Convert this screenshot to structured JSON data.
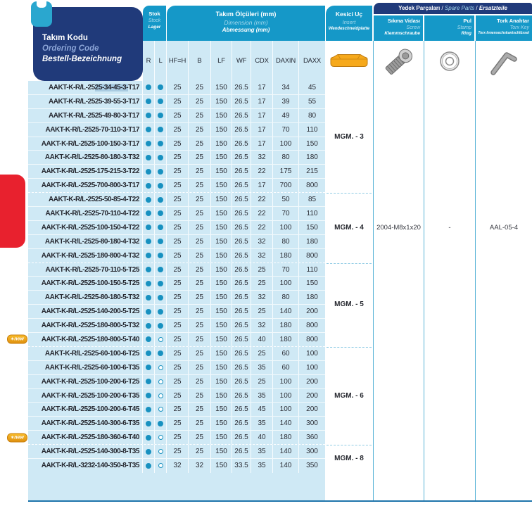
{
  "colors": {
    "navy": "#203a7a",
    "cyan": "#1598c8",
    "light_blue": "#cfe9f5",
    "dot": "#1791c0",
    "gold": "#f6a91c",
    "red": "#e8212e",
    "selection": "#a9cbe1",
    "column_border": "#58b3d6"
  },
  "ordering_code_header": {
    "tr": "Takım Kodu",
    "en": "Ordering Code",
    "de": "Bestell-Bezeichnung"
  },
  "stock_header": {
    "tr": "Stok",
    "en": "Stock",
    "de": "Lager"
  },
  "dimensions_header": {
    "tr": "Takım Ölçüleri (mm)",
    "en": "Dimension (mm)",
    "de": "Abmessung (mm)"
  },
  "insert_header": {
    "tr": "Kesici Uç",
    "en": "Insert",
    "de": "Wendeschneidplatte"
  },
  "spare_parts_header": {
    "tr": "Yedek Parçaları",
    "en": "Spare Parts",
    "de": "Ersatzteile",
    "separator": "/"
  },
  "screw_header": {
    "tr": "Sıkma Vidası",
    "en": "Screw",
    "de": "Klemmschraube"
  },
  "ring_header": {
    "tr": "Pul",
    "en": "Stamp",
    "de": "Ring"
  },
  "torx_header": {
    "tr": "Tork Anahtar",
    "en": "Torx Key",
    "de": "Torx Innensechskantschlüssel"
  },
  "dim_columns": [
    "R",
    "L",
    "HF=H",
    "B",
    "LF",
    "WF",
    "CDX",
    "DAXIN",
    "DAXX"
  ],
  "icons": {
    "insert": "grooving-insert-icon",
    "screw": "clamp-screw-icon",
    "ring": "washer-icon",
    "torx": "torx-key-icon"
  },
  "new_badge_label": "new",
  "groups": [
    {
      "insert_ref": "MGM. - 3",
      "screw": "",
      "ring": "",
      "torx": "",
      "rows": [
        {
          "code": "AAKT-K-R/L-2525-34-45-3-T17",
          "selection": "25-34-45-3-",
          "r": 1,
          "l": 1,
          "new": false,
          "dims": [
            "25",
            "25",
            "150",
            "26.5",
            "17",
            "34",
            "45"
          ]
        },
        {
          "code": "AAKT-K-R/L-2525-39-55-3-T17",
          "r": 1,
          "l": 1,
          "new": false,
          "dims": [
            "25",
            "25",
            "150",
            "26.5",
            "17",
            "39",
            "55"
          ]
        },
        {
          "code": "AAKT-K-R/L-2525-49-80-3-T17",
          "r": 1,
          "l": 1,
          "new": false,
          "dims": [
            "25",
            "25",
            "150",
            "26.5",
            "17",
            "49",
            "80"
          ]
        },
        {
          "code": "AAKT-K-R/L-2525-70-110-3-T17",
          "r": 1,
          "l": 1,
          "new": false,
          "dims": [
            "25",
            "25",
            "150",
            "26.5",
            "17",
            "70",
            "110"
          ]
        },
        {
          "code": "AAKT-K-R/L-2525-100-150-3-T17",
          "r": 1,
          "l": 1,
          "new": false,
          "dims": [
            "25",
            "25",
            "150",
            "26.5",
            "17",
            "100",
            "150"
          ]
        },
        {
          "code": "AAKT-K-R/L-2525-80-180-3-T32",
          "r": 1,
          "l": 1,
          "new": false,
          "dims": [
            "25",
            "25",
            "150",
            "26.5",
            "32",
            "80",
            "180"
          ]
        },
        {
          "code": "AAKT-K-R/L-2525-175-215-3-T22",
          "r": 1,
          "l": 1,
          "new": false,
          "dims": [
            "25",
            "25",
            "150",
            "26.5",
            "22",
            "175",
            "215"
          ]
        },
        {
          "code": "AAKT-K-R/L-2525-700-800-3-T17",
          "r": 1,
          "l": 1,
          "new": false,
          "dims": [
            "25",
            "25",
            "150",
            "26.5",
            "17",
            "700",
            "800"
          ]
        }
      ]
    },
    {
      "insert_ref": "MGM. - 4",
      "screw": "2004-M8x1x20",
      "ring": "-",
      "torx": "AAL-05-4",
      "rows": [
        {
          "code": "AAKT-K-R/L-2525-50-85-4-T22",
          "r": 1,
          "l": 1,
          "new": false,
          "dims": [
            "25",
            "25",
            "150",
            "26.5",
            "22",
            "50",
            "85"
          ]
        },
        {
          "code": "AAKT-K-R/L-2525-70-110-4-T22",
          "r": 1,
          "l": 1,
          "new": false,
          "dims": [
            "25",
            "25",
            "150",
            "26.5",
            "22",
            "70",
            "110"
          ]
        },
        {
          "code": "AAKT-K-R/L-2525-100-150-4-T22",
          "r": 1,
          "l": 1,
          "new": false,
          "dims": [
            "25",
            "25",
            "150",
            "26.5",
            "22",
            "100",
            "150"
          ]
        },
        {
          "code": "AAKT-K-R/L-2525-80-180-4-T32",
          "r": 1,
          "l": 1,
          "new": false,
          "dims": [
            "25",
            "25",
            "150",
            "26.5",
            "32",
            "80",
            "180"
          ]
        },
        {
          "code": "AAKT-K-R/L-2525-180-800-4-T32",
          "r": 1,
          "l": 1,
          "new": false,
          "dims": [
            "25",
            "25",
            "150",
            "26.5",
            "32",
            "180",
            "800"
          ]
        }
      ]
    },
    {
      "insert_ref": "MGM. - 5",
      "screw": "",
      "ring": "",
      "torx": "",
      "rows": [
        {
          "code": "AAKT-K-R/L-2525-70-110-5-T25",
          "r": 1,
          "l": 1,
          "new": false,
          "dims": [
            "25",
            "25",
            "150",
            "26.5",
            "25",
            "70",
            "110"
          ]
        },
        {
          "code": "AAKT-K-R/L-2525-100-150-5-T25",
          "r": 1,
          "l": 1,
          "new": false,
          "dims": [
            "25",
            "25",
            "150",
            "26.5",
            "25",
            "100",
            "150"
          ]
        },
        {
          "code": "AAKT-K-R/L-2525-80-180-5-T32",
          "r": 1,
          "l": 1,
          "new": false,
          "dims": [
            "25",
            "25",
            "150",
            "26.5",
            "32",
            "80",
            "180"
          ]
        },
        {
          "code": "AAKT-K-R/L-2525-140-200-5-T25",
          "r": 1,
          "l": 1,
          "new": false,
          "dims": [
            "25",
            "25",
            "150",
            "26.5",
            "25",
            "140",
            "200"
          ]
        },
        {
          "code": "AAKT-K-R/L-2525-180-800-5-T32",
          "r": 1,
          "l": 1,
          "new": false,
          "dims": [
            "25",
            "25",
            "150",
            "26.5",
            "32",
            "180",
            "800"
          ]
        },
        {
          "code": "AAKT-K-R/L-2525-180-800-5-T40",
          "r": 1,
          "l": 0,
          "new": true,
          "dims": [
            "25",
            "25",
            "150",
            "26.5",
            "40",
            "180",
            "800"
          ]
        }
      ]
    },
    {
      "insert_ref": "MGM. - 6",
      "screw": "",
      "ring": "",
      "torx": "",
      "rows": [
        {
          "code": "AAKT-K-R/L-2525-60-100-6-T25",
          "r": 1,
          "l": 1,
          "new": false,
          "dims": [
            "25",
            "25",
            "150",
            "26.5",
            "25",
            "60",
            "100"
          ]
        },
        {
          "code": "AAKT-K-R/L-2525-60-100-6-T35",
          "r": 1,
          "l": 0,
          "new": false,
          "dims": [
            "25",
            "25",
            "150",
            "26.5",
            "35",
            "60",
            "100"
          ]
        },
        {
          "code": "AAKT-K-R/L-2525-100-200-6-T25",
          "r": 1,
          "l": 0,
          "new": false,
          "dims": [
            "25",
            "25",
            "150",
            "26.5",
            "25",
            "100",
            "200"
          ]
        },
        {
          "code": "AAKT-K-R/L-2525-100-200-6-T35",
          "r": 1,
          "l": 0,
          "new": false,
          "dims": [
            "25",
            "25",
            "150",
            "26.5",
            "35",
            "100",
            "200"
          ]
        },
        {
          "code": "AAKT-K-R/L-2525-100-200-6-T45",
          "r": 1,
          "l": 0,
          "new": false,
          "dims": [
            "25",
            "25",
            "150",
            "26.5",
            "45",
            "100",
            "200"
          ]
        },
        {
          "code": "AAKT-K-R/L-2525-140-300-6-T35",
          "r": 1,
          "l": 1,
          "new": false,
          "dims": [
            "25",
            "25",
            "150",
            "26.5",
            "35",
            "140",
            "300"
          ]
        },
        {
          "code": "AAKT-K-R/L-2525-180-360-6-T40",
          "r": 1,
          "l": 0,
          "new": true,
          "dims": [
            "25",
            "25",
            "150",
            "26.5",
            "40",
            "180",
            "360"
          ]
        }
      ]
    },
    {
      "insert_ref": "MGM. - 8",
      "screw": "",
      "ring": "",
      "torx": "",
      "rows": [
        {
          "code": "AAKT-K-R/L-2525-140-300-8-T35",
          "r": 1,
          "l": 0,
          "new": false,
          "dims": [
            "25",
            "25",
            "150",
            "26.5",
            "35",
            "140",
            "300"
          ]
        },
        {
          "code": "AAKT-K-R/L-3232-140-350-8-T35",
          "r": 1,
          "l": 0,
          "new": false,
          "dims": [
            "32",
            "32",
            "150",
            "33.5",
            "35",
            "140",
            "350"
          ]
        }
      ]
    }
  ]
}
